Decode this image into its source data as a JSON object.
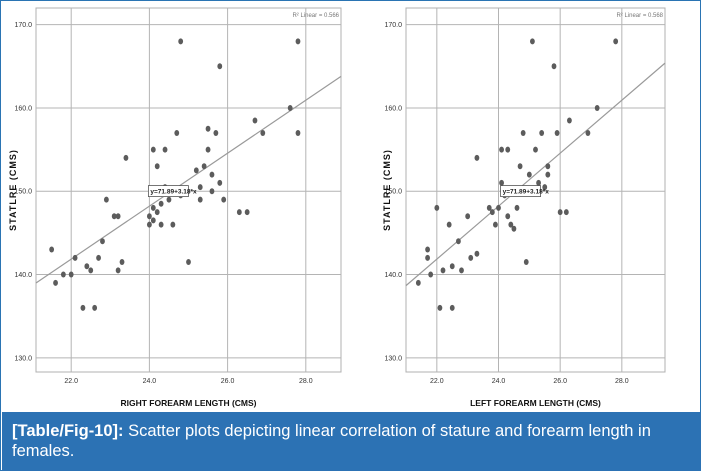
{
  "caption": {
    "label": "[Table/Fig-10]:",
    "text": " Scatter plots depicting linear correlation of stature and forearm length in females."
  },
  "chart_data": [
    {
      "type": "scatter",
      "title": "",
      "xlabel": "RIGHT FOREARM LENGTH (CMS)",
      "ylabel": "STATLRE (CMS)",
      "xlim": [
        21.1,
        28.9
      ],
      "ylim": [
        128.3,
        172.0
      ],
      "xticks": [
        22.0,
        24.0,
        26.0,
        28.0
      ],
      "xtick_labels": [
        "22.0",
        "24.0",
        "26.0",
        "28.0"
      ],
      "yticks": [
        130.0,
        140.0,
        150.0,
        160.0,
        170.0
      ],
      "ytick_labels": [
        "130.0",
        "140.0",
        "150.0",
        "160.0",
        "170.0"
      ],
      "r2_label": "R² Linear = 0.566",
      "equation": "y=71.89+3.18*x",
      "fit": {
        "intercept": 71.89,
        "slope": 3.18
      },
      "equation_anchor": [
        24.0,
        150.2
      ],
      "points": [
        [
          21.5,
          143.0
        ],
        [
          21.6,
          139.0
        ],
        [
          21.8,
          140.0
        ],
        [
          22.0,
          140.0
        ],
        [
          22.1,
          142.0
        ],
        [
          22.3,
          136.0
        ],
        [
          22.4,
          141.0
        ],
        [
          22.5,
          140.5
        ],
        [
          22.6,
          136.0
        ],
        [
          22.7,
          142.0
        ],
        [
          22.8,
          144.0
        ],
        [
          22.9,
          149.0
        ],
        [
          23.1,
          147.0
        ],
        [
          23.2,
          147.0
        ],
        [
          23.2,
          140.5
        ],
        [
          23.3,
          141.5
        ],
        [
          23.4,
          154.0
        ],
        [
          24.0,
          146.0
        ],
        [
          24.0,
          147.0
        ],
        [
          24.1,
          148.0
        ],
        [
          24.1,
          155.0
        ],
        [
          24.1,
          146.5
        ],
        [
          24.2,
          153.0
        ],
        [
          24.2,
          147.5
        ],
        [
          24.3,
          146.0
        ],
        [
          24.3,
          148.5
        ],
        [
          24.4,
          150.5
        ],
        [
          24.4,
          155.0
        ],
        [
          24.5,
          149.0
        ],
        [
          24.6,
          146.0
        ],
        [
          24.7,
          157.0
        ],
        [
          24.7,
          150.0
        ],
        [
          24.8,
          168.0
        ],
        [
          24.8,
          149.5
        ],
        [
          25.0,
          141.5
        ],
        [
          25.2,
          152.5
        ],
        [
          25.3,
          150.5
        ],
        [
          25.3,
          149.0
        ],
        [
          25.4,
          153.0
        ],
        [
          25.5,
          157.5
        ],
        [
          25.5,
          155.0
        ],
        [
          25.6,
          152.0
        ],
        [
          25.6,
          150.0
        ],
        [
          25.7,
          157.0
        ],
        [
          25.8,
          165.0
        ],
        [
          25.8,
          151.0
        ],
        [
          25.9,
          149.0
        ],
        [
          26.3,
          147.5
        ],
        [
          26.5,
          147.5
        ],
        [
          26.7,
          158.5
        ],
        [
          26.9,
          157.0
        ],
        [
          27.6,
          160.0
        ],
        [
          27.8,
          168.0
        ],
        [
          27.8,
          157.0
        ]
      ]
    },
    {
      "type": "scatter",
      "title": "",
      "xlabel": "LEFT FOREARM LENGTH (CMS)",
      "ylabel": "STATLRE (CMS)",
      "xlim": [
        21.0,
        29.4
      ],
      "ylim": [
        128.3,
        172.0
      ],
      "xticks": [
        22.0,
        24.0,
        26.0,
        28.0
      ],
      "xtick_labels": [
        "22.0",
        "24.0",
        "26.0",
        "28.0"
      ],
      "yticks": [
        130.0,
        140.0,
        150.0,
        160.0,
        170.0
      ],
      "ytick_labels": [
        "130.0",
        "140.0",
        "150.0",
        "160.0",
        "170.0"
      ],
      "r2_label": "R² Linear = 0.568",
      "equation": "y=71.89+3.18*x",
      "fit": {
        "intercept": 71.89,
        "slope": 3.18
      },
      "equation_anchor": [
        24.1,
        150.2
      ],
      "points": [
        [
          21.4,
          139.0
        ],
        [
          21.7,
          143.0
        ],
        [
          21.7,
          142.0
        ],
        [
          21.8,
          140.0
        ],
        [
          22.0,
          148.0
        ],
        [
          22.1,
          136.0
        ],
        [
          22.2,
          140.5
        ],
        [
          22.4,
          146.0
        ],
        [
          22.5,
          136.0
        ],
        [
          22.5,
          141.0
        ],
        [
          22.7,
          144.0
        ],
        [
          22.8,
          140.5
        ],
        [
          23.0,
          147.0
        ],
        [
          23.1,
          142.0
        ],
        [
          23.3,
          154.0
        ],
        [
          23.3,
          142.5
        ],
        [
          23.7,
          148.0
        ],
        [
          23.8,
          147.5
        ],
        [
          23.9,
          146.0
        ],
        [
          24.0,
          148.0
        ],
        [
          24.1,
          155.0
        ],
        [
          24.1,
          151.0
        ],
        [
          24.2,
          149.5
        ],
        [
          24.3,
          155.0
        ],
        [
          24.3,
          147.0
        ],
        [
          24.4,
          146.0
        ],
        [
          24.5,
          145.5
        ],
        [
          24.6,
          148.0
        ],
        [
          24.7,
          153.0
        ],
        [
          24.8,
          157.0
        ],
        [
          24.9,
          141.5
        ],
        [
          25.0,
          152.0
        ],
        [
          25.1,
          168.0
        ],
        [
          25.2,
          155.0
        ],
        [
          25.2,
          150.0
        ],
        [
          25.3,
          151.0
        ],
        [
          25.4,
          157.0
        ],
        [
          25.5,
          150.5
        ],
        [
          25.6,
          152.0
        ],
        [
          25.6,
          153.0
        ],
        [
          25.8,
          165.0
        ],
        [
          25.9,
          157.0
        ],
        [
          26.0,
          147.5
        ],
        [
          26.2,
          147.5
        ],
        [
          26.3,
          158.5
        ],
        [
          26.9,
          157.0
        ],
        [
          27.2,
          160.0
        ],
        [
          27.8,
          168.0
        ]
      ]
    }
  ]
}
